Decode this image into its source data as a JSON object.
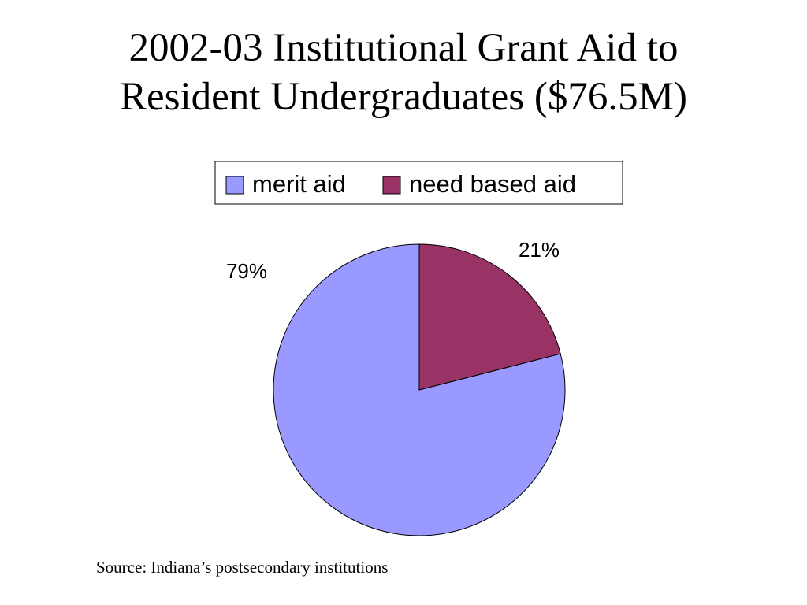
{
  "chart_data": {
    "type": "pie",
    "title": "2002-03 Institutional Grant Aid to Resident Undergraduates ($76.5M)",
    "categories": [
      "merit aid",
      "need based aid"
    ],
    "values": [
      79,
      21
    ],
    "value_labels": [
      "79%",
      "21%"
    ],
    "colors": [
      "#9999ff",
      "#993366"
    ],
    "legend": "top",
    "source": "Source: Indiana’s postsecondary institutions"
  }
}
